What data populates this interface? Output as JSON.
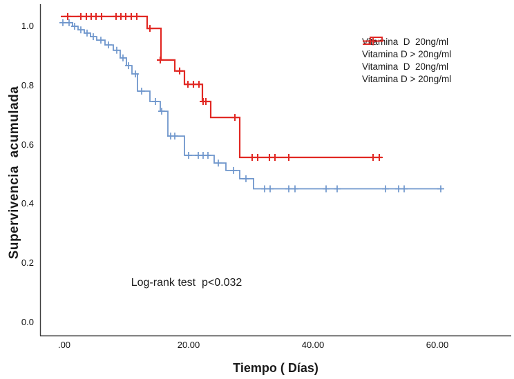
{
  "chart_data": {
    "type": "line",
    "subtype": "kaplan-meier-step-survival",
    "title": "",
    "annotation": {
      "text": "Log-rank test  p<0.032"
    },
    "x_axis": {
      "label": "Tiempo ( Días)",
      "ticks": [
        {
          "value": 0,
          "label": ".00"
        },
        {
          "value": 20,
          "label": "20.00"
        },
        {
          "value": 40,
          "label": "40.00"
        },
        {
          "value": 60,
          "label": "60.00"
        }
      ],
      "range": [
        -3.9,
        72.3
      ]
    },
    "y_axis": {
      "label": "Supervivencia  acumulada",
      "ticks": [
        {
          "value": 0.0,
          "label": "0.0"
        },
        {
          "value": 0.2,
          "label": "0.2"
        },
        {
          "value": 0.4,
          "label": "0.4"
        },
        {
          "value": 0.6,
          "label": "0.6"
        },
        {
          "value": 0.8,
          "label": "0.8"
        },
        {
          "value": 1.0,
          "label": "1.0"
        }
      ],
      "range": [
        -0.05,
        1.09
      ]
    },
    "grid": false,
    "legend_position": "top-right",
    "legend": {
      "items": [
        {
          "label": "Vitamina  D  20ng/ml",
          "glyph": "step",
          "color": "#6f96cc"
        },
        {
          "label": "Vitamina D > 20ng/ml",
          "glyph": "step",
          "color": "#e12823"
        },
        {
          "label": "Vitamina  D  20ng/ml",
          "glyph": "censor",
          "color": "#6f96cc"
        },
        {
          "label": "Vitamina D > 20ng/ml",
          "glyph": "censor",
          "color": "#e12823"
        }
      ]
    },
    "series": [
      {
        "name": "Vitamina  D  20ng/ml",
        "color": "#6f96cc",
        "stroke_width": 1.8,
        "points": [
          [
            -0.33,
            1.01
          ],
          [
            1.33,
            1.01
          ],
          [
            1.33,
            0.998
          ],
          [
            2.22,
            0.998
          ],
          [
            2.22,
            0.986
          ],
          [
            3.22,
            0.986
          ],
          [
            3.22,
            0.975
          ],
          [
            4.22,
            0.975
          ],
          [
            4.22,
            0.963
          ],
          [
            5.22,
            0.963
          ],
          [
            5.22,
            0.951
          ],
          [
            6.56,
            0.951
          ],
          [
            6.56,
            0.935
          ],
          [
            7.89,
            0.935
          ],
          [
            7.89,
            0.917
          ],
          [
            9.0,
            0.917
          ],
          [
            9.0,
            0.891
          ],
          [
            10.0,
            0.891
          ],
          [
            10.0,
            0.865
          ],
          [
            10.89,
            0.865
          ],
          [
            10.89,
            0.837
          ],
          [
            11.78,
            0.837
          ],
          [
            11.78,
            0.779
          ],
          [
            13.78,
            0.779
          ],
          [
            13.78,
            0.744
          ],
          [
            15.44,
            0.744
          ],
          [
            15.44,
            0.711
          ],
          [
            16.67,
            0.711
          ],
          [
            16.67,
            0.627
          ],
          [
            19.33,
            0.627
          ],
          [
            19.33,
            0.562
          ],
          [
            24.11,
            0.562
          ],
          [
            24.11,
            0.536
          ],
          [
            26.0,
            0.536
          ],
          [
            26.0,
            0.511
          ],
          [
            28.22,
            0.511
          ],
          [
            28.22,
            0.483
          ],
          [
            30.44,
            0.483
          ],
          [
            30.44,
            0.449
          ],
          [
            60.78,
            0.449
          ]
        ],
        "censors": [
          [
            -0.22,
            1.01
          ],
          [
            0.78,
            1.01
          ],
          [
            1.67,
            0.998
          ],
          [
            2.67,
            0.986
          ],
          [
            3.67,
            0.975
          ],
          [
            4.67,
            0.963
          ],
          [
            5.89,
            0.951
          ],
          [
            7.11,
            0.935
          ],
          [
            8.44,
            0.917
          ],
          [
            9.44,
            0.891
          ],
          [
            10.33,
            0.865
          ],
          [
            11.44,
            0.837
          ],
          [
            12.44,
            0.779
          ],
          [
            14.67,
            0.744
          ],
          [
            15.67,
            0.711
          ],
          [
            17.11,
            0.627
          ],
          [
            17.78,
            0.627
          ],
          [
            20.0,
            0.562
          ],
          [
            21.56,
            0.562
          ],
          [
            22.33,
            0.562
          ],
          [
            23.11,
            0.562
          ],
          [
            24.78,
            0.536
          ],
          [
            27.22,
            0.511
          ],
          [
            29.22,
            0.483
          ],
          [
            32.22,
            0.449
          ],
          [
            33.11,
            0.449
          ],
          [
            36.11,
            0.449
          ],
          [
            37.11,
            0.449
          ],
          [
            42.11,
            0.449
          ],
          [
            43.89,
            0.449
          ],
          [
            51.67,
            0.449
          ],
          [
            53.78,
            0.449
          ],
          [
            54.67,
            0.449
          ],
          [
            60.56,
            0.449
          ]
        ]
      },
      {
        "name": "Vitamina D > 20ng/ml",
        "color": "#e12823",
        "stroke_width": 2.2,
        "points": [
          [
            -0.56,
            1.031
          ],
          [
            13.33,
            1.031
          ],
          [
            13.33,
            0.991
          ],
          [
            15.56,
            0.991
          ],
          [
            15.56,
            0.884
          ],
          [
            17.78,
            0.884
          ],
          [
            17.78,
            0.847
          ],
          [
            19.33,
            0.847
          ],
          [
            19.33,
            0.802
          ],
          [
            22.22,
            0.802
          ],
          [
            22.22,
            0.744
          ],
          [
            23.56,
            0.744
          ],
          [
            23.56,
            0.69
          ],
          [
            28.22,
            0.69
          ],
          [
            28.22,
            0.555
          ],
          [
            51.11,
            0.555
          ]
        ],
        "censors": [
          [
            0.56,
            1.031
          ],
          [
            2.67,
            1.031
          ],
          [
            3.56,
            1.031
          ],
          [
            4.33,
            1.031
          ],
          [
            5.11,
            1.031
          ],
          [
            6.0,
            1.031
          ],
          [
            8.33,
            1.031
          ],
          [
            9.11,
            1.031
          ],
          [
            9.89,
            1.031
          ],
          [
            10.78,
            1.031
          ],
          [
            11.67,
            1.031
          ],
          [
            13.78,
            0.991
          ],
          [
            15.44,
            0.884
          ],
          [
            18.56,
            0.847
          ],
          [
            19.89,
            0.802
          ],
          [
            20.78,
            0.802
          ],
          [
            21.67,
            0.802
          ],
          [
            22.33,
            0.744
          ],
          [
            22.78,
            0.744
          ],
          [
            27.44,
            0.69
          ],
          [
            30.22,
            0.555
          ],
          [
            31.11,
            0.555
          ],
          [
            33.0,
            0.555
          ],
          [
            33.89,
            0.555
          ],
          [
            36.11,
            0.555
          ],
          [
            49.67,
            0.555
          ],
          [
            50.67,
            0.555
          ]
        ]
      }
    ]
  }
}
